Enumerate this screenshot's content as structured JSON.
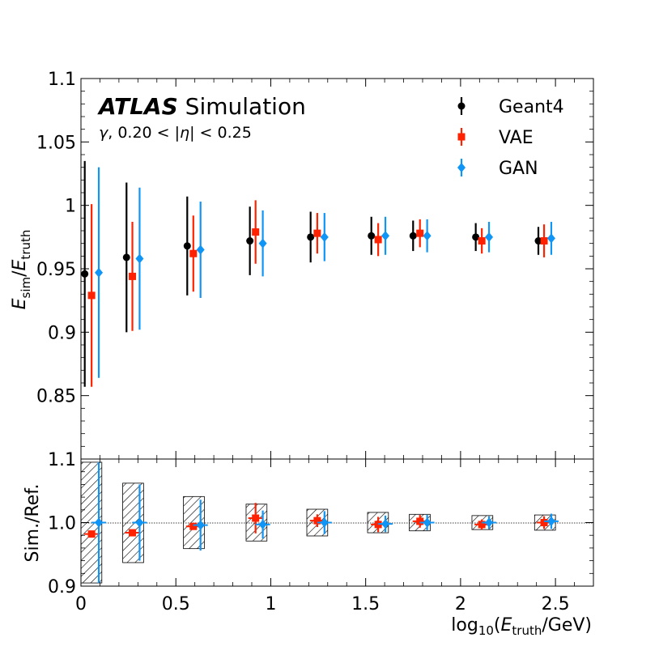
{
  "chart_data": {
    "type": "scatter",
    "main": {
      "title_bold": "ATLAS",
      "title_rest": " Simulation",
      "subtitle_particle": "γ",
      "subtitle_rest": ", 0.20 < |",
      "subtitle_eta": "η",
      "subtitle_tail": "| < 0.25",
      "ylabel_E": "E",
      "ylabel_sim": "sim",
      "ylabel_slash": "/",
      "ylabel_E2": "E",
      "ylabel_truth": "truth",
      "ylim": [
        0.8,
        1.1
      ],
      "yticks": [
        0.85,
        0.9,
        0.95,
        1.0,
        1.05,
        1.1
      ],
      "yticklabels": [
        "0.85",
        "0.9",
        "0.95",
        "1",
        "1.05",
        "1.1"
      ],
      "legend": [
        {
          "label": "Geant4",
          "color": "#000000",
          "marker": "circle"
        },
        {
          "label": "VAE",
          "color": "#ff2200",
          "marker": "square"
        },
        {
          "label": "GAN",
          "color": "#0f95f5",
          "marker": "diamond"
        }
      ],
      "series": [
        {
          "name": "Geant4",
          "color": "#000000",
          "marker": "circle",
          "x": [
            0.02,
            0.24,
            0.56,
            0.89,
            1.21,
            1.53,
            1.75,
            2.08,
            2.41
          ],
          "y": [
            0.946,
            0.959,
            0.968,
            0.972,
            0.975,
            0.976,
            0.976,
            0.975,
            0.972
          ],
          "err": [
            0.089,
            0.059,
            0.039,
            0.027,
            0.02,
            0.015,
            0.012,
            0.011,
            0.011
          ]
        },
        {
          "name": "VAE",
          "color": "#ff2200",
          "marker": "square",
          "x": [
            0.056,
            0.271,
            0.592,
            0.92,
            1.245,
            1.566,
            1.786,
            2.112,
            2.44
          ],
          "y": [
            0.929,
            0.944,
            0.962,
            0.979,
            0.978,
            0.973,
            0.978,
            0.972,
            0.972
          ],
          "err": [
            0.072,
            0.043,
            0.03,
            0.025,
            0.016,
            0.013,
            0.011,
            0.01,
            0.013
          ]
        },
        {
          "name": "GAN",
          "color": "#0f95f5",
          "marker": "diamond",
          "x": [
            0.094,
            0.309,
            0.63,
            0.958,
            1.283,
            1.604,
            1.824,
            2.15,
            2.478
          ],
          "y": [
            0.947,
            0.958,
            0.965,
            0.97,
            0.975,
            0.976,
            0.976,
            0.975,
            0.974
          ],
          "err": [
            0.083,
            0.056,
            0.038,
            0.026,
            0.019,
            0.015,
            0.013,
            0.012,
            0.013
          ]
        }
      ]
    },
    "ratio": {
      "ylabel": "Sim./Ref.",
      "ylim": [
        0.9,
        1.1
      ],
      "yticks": [
        0.9,
        1.0,
        1.1
      ],
      "yticklabels": [
        "0.9",
        "1.0",
        "1.1"
      ],
      "reference_line": 1.0,
      "uncertainty_bands": {
        "x_low": [
          0.0,
          0.22,
          0.54,
          0.87,
          1.19,
          1.51,
          1.73,
          2.06,
          2.39
        ],
        "x_high": [
          0.11,
          0.33,
          0.65,
          0.98,
          1.3,
          1.62,
          1.84,
          2.17,
          2.5
        ],
        "low": [
          0.905,
          0.937,
          0.959,
          0.971,
          0.979,
          0.984,
          0.987,
          0.989,
          0.988
        ],
        "high": [
          1.095,
          1.062,
          1.041,
          1.029,
          1.021,
          1.016,
          1.013,
          1.011,
          1.012
        ]
      },
      "series": [
        {
          "name": "VAE",
          "color": "#ff2200",
          "marker": "square",
          "x": [
            0.056,
            0.271,
            0.592,
            0.92,
            1.245,
            1.566,
            1.786,
            2.112,
            2.44
          ],
          "y": [
            0.982,
            0.984,
            0.994,
            1.007,
            1.003,
            0.997,
            1.002,
            0.997,
            1.0
          ],
          "err": [
            0.0,
            0.0,
            0.004,
            0.024,
            0.01,
            0.012,
            0.01,
            0.008,
            0.01
          ]
        },
        {
          "name": "GAN",
          "color": "#0f95f5",
          "marker": "diamond",
          "x": [
            0.094,
            0.309,
            0.63,
            0.958,
            1.283,
            1.604,
            1.824,
            2.15,
            2.478
          ],
          "y": [
            1.0,
            1.0,
            0.996,
            0.997,
            1.0,
            0.998,
            1.0,
            1.0,
            1.002
          ],
          "err": [
            0.095,
            0.06,
            0.04,
            0.022,
            0.018,
            0.013,
            0.012,
            0.01,
            0.012
          ]
        }
      ]
    },
    "xaxis": {
      "xlim": [
        0.0,
        2.7
      ],
      "xticks": [
        0,
        0.5,
        1,
        1.5,
        2,
        2.5
      ],
      "xticklabels": [
        "0",
        "0.5",
        "1",
        "1.5",
        "2",
        "2.5"
      ],
      "xlabel_log": "log",
      "xlabel_sub": "10",
      "xlabel_open": "(",
      "xlabel_E": "E",
      "xlabel_truth": "truth",
      "xlabel_unit": "/GeV)"
    }
  }
}
